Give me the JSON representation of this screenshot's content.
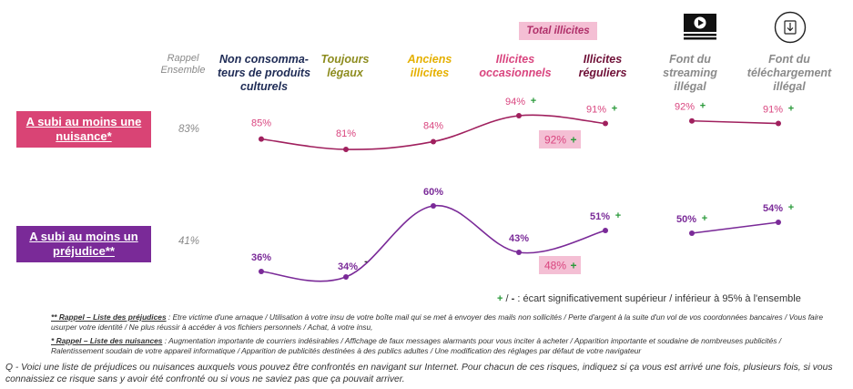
{
  "header": {
    "rappel": "Rappel Ensemble",
    "total_illicites": "Total illicites",
    "columns": [
      {
        "label": "Non consomma- teurs de produits culturels",
        "color": "#1e2b55"
      },
      {
        "label": "Toujours légaux",
        "color": "#8d8c1e"
      },
      {
        "label": "Anciens illicites",
        "color": "#e5b000"
      },
      {
        "label": "Illicites occasionnels",
        "color": "#d9457f"
      },
      {
        "label": "Illicites réguliers",
        "color": "#6f1037"
      },
      {
        "label": "Font du streaming illégal",
        "color": "#8a8a8a"
      },
      {
        "label": "Font du téléchargement illégal",
        "color": "#8a8a8a"
      }
    ],
    "icons": [
      "video-play-icon",
      "download-icon"
    ]
  },
  "rows": [
    {
      "label": "A subi au moins une nuisance*",
      "ref": "83%",
      "color": "#d94475"
    },
    {
      "label": "A subi au moins un préjudice**",
      "ref": "41%",
      "color": "#7a2a98"
    }
  ],
  "chart_data": {
    "type": "line",
    "categories": [
      "Non consommateurs de produits culturels",
      "Toujours légaux",
      "Anciens illicites",
      "Illicites occasionnels",
      "Illicites réguliers",
      "Font du streaming illégal",
      "Font du téléchargement illégal"
    ],
    "series": [
      {
        "name": "A subi au moins une nuisance*",
        "color": "#a0205e",
        "labels_color": "#d9457f",
        "values": [
          85,
          81,
          84,
          94,
          91,
          92,
          91
        ],
        "labels": [
          "85%",
          "81%",
          "84%",
          "94%",
          "91%",
          "92%",
          "91%"
        ],
        "sig": [
          "",
          "",
          "",
          "+",
          "+",
          "+",
          "+"
        ],
        "total_illicites": {
          "label": "92%",
          "sig": "+"
        }
      },
      {
        "name": "A subi au moins un préjudice**",
        "color": "#7a2a98",
        "labels_color": "#7a2a98",
        "values": [
          36,
          34,
          60,
          43,
          51,
          50,
          54
        ],
        "labels": [
          "36%",
          "34%",
          "60%",
          "43%",
          "51%",
          "50%",
          "54%"
        ],
        "sig": [
          "",
          "-",
          "",
          "",
          "+",
          "+",
          "+"
        ],
        "total_illicites": {
          "label": "48%",
          "sig": "+"
        }
      }
    ]
  },
  "legend": {
    "plus": "+",
    "sep": " / ",
    "minus": "-",
    "text": " : écart significativement supérieur / inférieur à 95% à l'ensemble"
  },
  "footnotes": {
    "prejudices_title": "** Rappel – Liste des préjudices",
    "prejudices_text": " : Etre victime d'une arnaque / Utilisation à votre insu de votre boîte mail qui se met à envoyer des mails non sollicités / Perte d'argent à la suite d'un vol de vos coordonnées bancaires / Vous faire usurper votre identité / Ne plus réussir à accéder à vos fichiers personnels / Achat, à votre insu,",
    "nuisances_title": "* Rappel – Liste des nuisances",
    "nuisances_text": " : Augmentation importante de courriers indésirables / Affichage de faux messages alarmants pour vous inciter à acheter / Apparition importante et soudaine de nombreuses publicités / Ralentissement soudain de votre appareil informatique / Apparition de publicités destinées à des publics adultes / Une modification des réglages par défaut de votre navigateur",
    "question": "Q - Voici une liste de préjudices ou nuisances auxquels vous pouvez être confrontés en navigant sur Internet. Pour chacun de ces risques, indiquez si ça vous est arrivé une fois, plusieurs fois, si vous connaissiez ce risque sans y avoir été confronté ou si vous ne saviez pas que ça pouvait arriver."
  },
  "colors": {
    "plus": "#2a9a3a",
    "total_bg": "#f4bfd4"
  }
}
